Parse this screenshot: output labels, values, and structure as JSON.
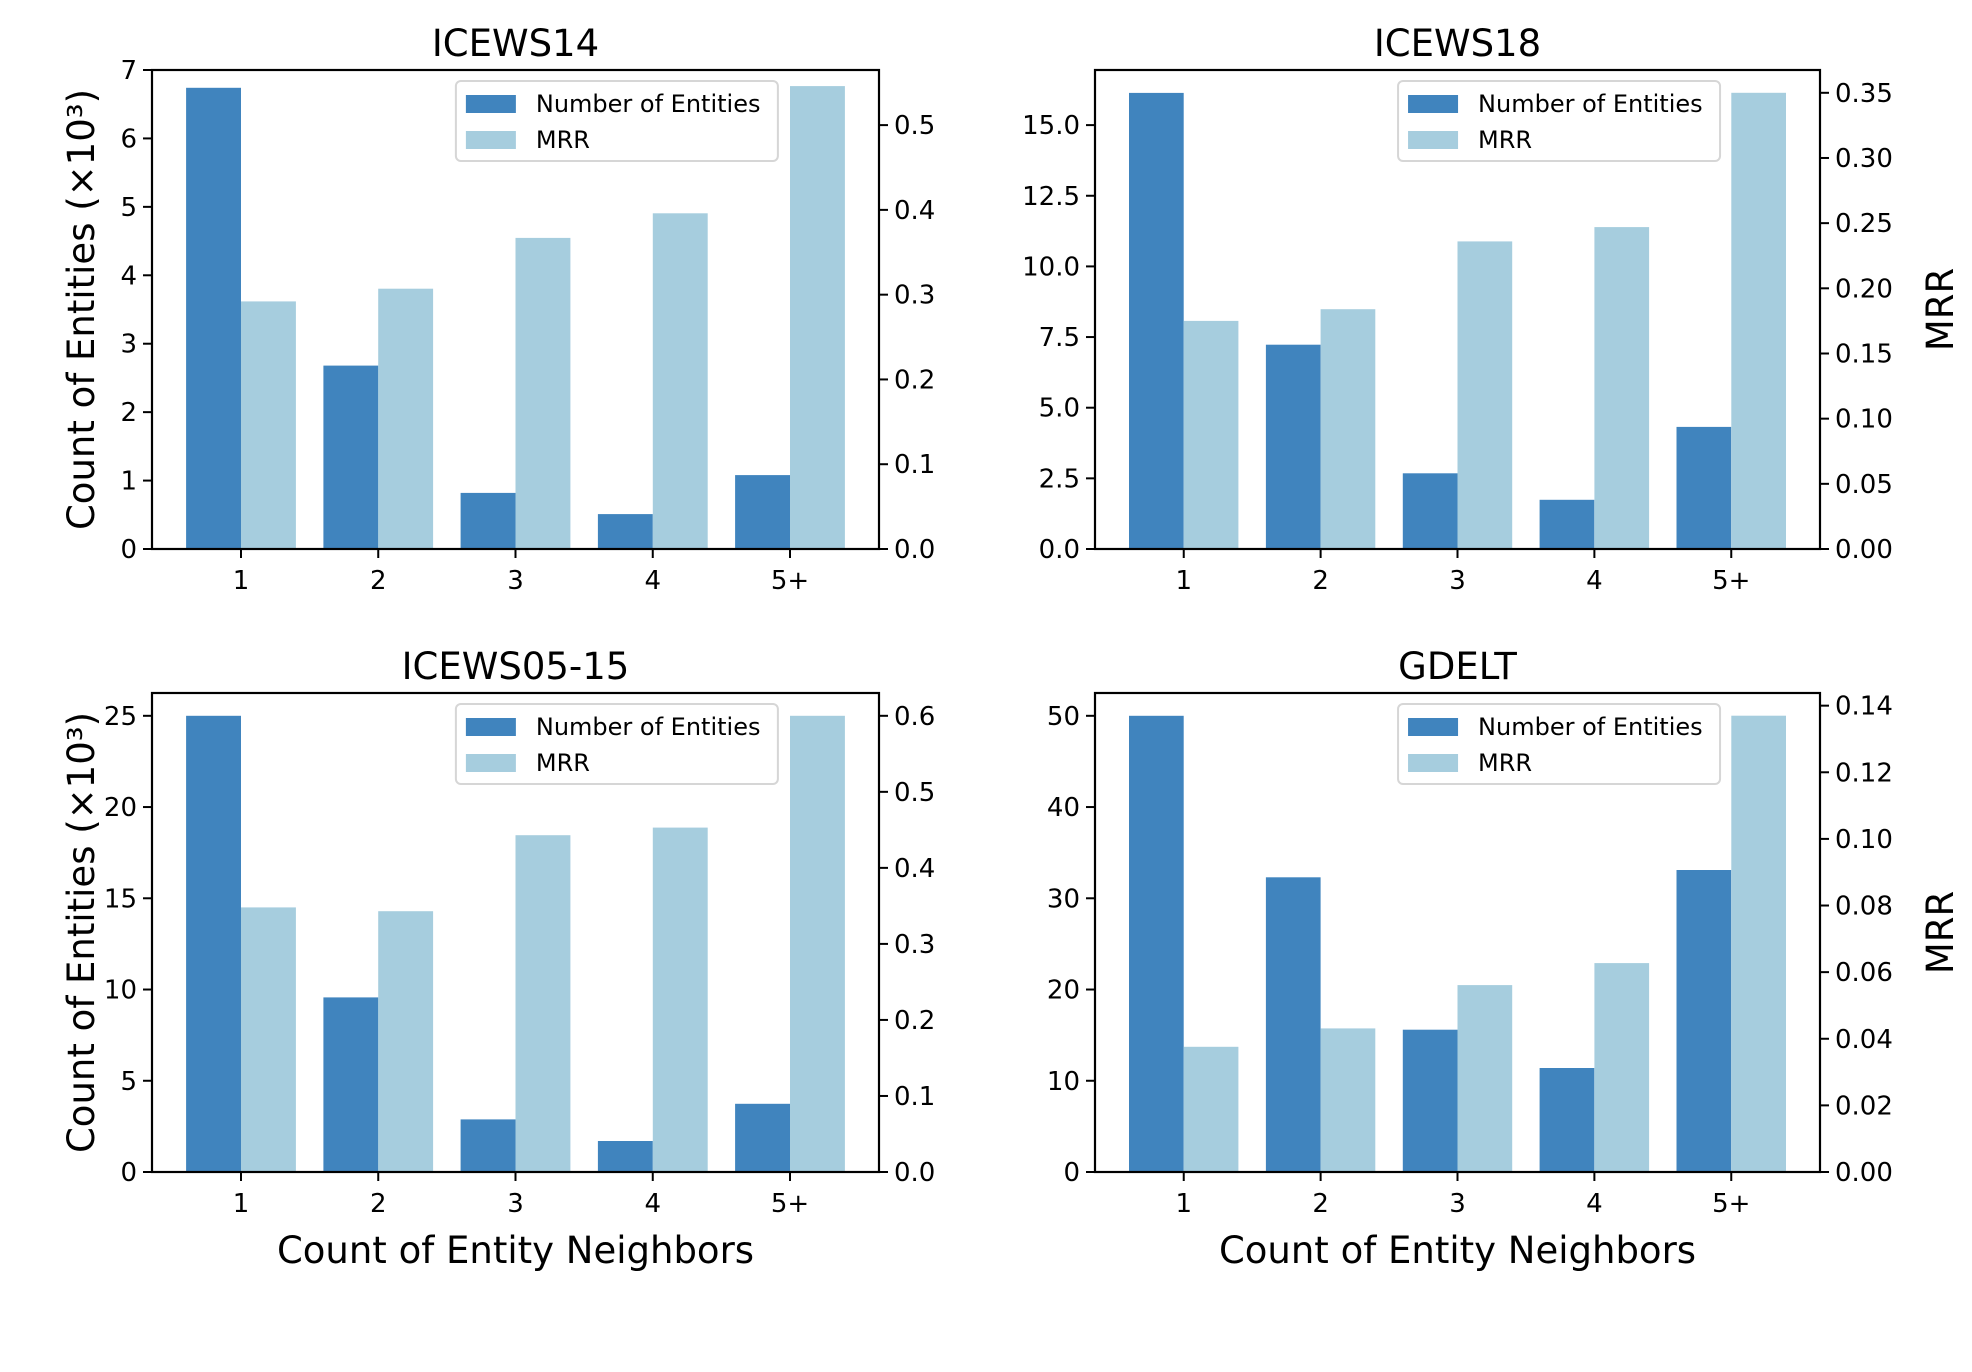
{
  "chart_data": [
    {
      "type": "bar",
      "title": "ICEWS14",
      "categories": [
        "1",
        "2",
        "3",
        "4",
        "5+"
      ],
      "xlabel": "",
      "ylabel": "Count of Entities (×10³)",
      "y2label": "",
      "ylim": [
        0,
        7
      ],
      "y2lim": [
        0,
        0.565
      ],
      "yticks": [
        "0",
        "1",
        "2",
        "3",
        "4",
        "5",
        "6",
        "7"
      ],
      "ytick_values": [
        0,
        1,
        2,
        3,
        4,
        5,
        6,
        7
      ],
      "y2ticks": [
        "0.0",
        "0.1",
        "0.2",
        "0.3",
        "0.4",
        "0.5"
      ],
      "y2tick_values": [
        0,
        0.1,
        0.2,
        0.3,
        0.4,
        0.5
      ],
      "series": [
        {
          "name": "Number of Entities",
          "axis": "left",
          "color": "#4084BE",
          "values": [
            6.74,
            2.68,
            0.82,
            0.51,
            1.08
          ]
        },
        {
          "name": "MRR",
          "axis": "right",
          "color": "#A6CDDE",
          "values": [
            0.292,
            0.307,
            0.367,
            0.396,
            0.546
          ]
        }
      ],
      "legend": "top-right",
      "grid": false
    },
    {
      "type": "bar",
      "title": "ICEWS18",
      "categories": [
        "1",
        "2",
        "3",
        "4",
        "5+"
      ],
      "xlabel": "",
      "ylabel": "",
      "y2label": "MRR",
      "ylim": [
        0,
        16.95
      ],
      "y2lim": [
        0,
        0.3675
      ],
      "yticks": [
        "0.0",
        "2.5",
        "5.0",
        "7.5",
        "10.0",
        "12.5",
        "15.0"
      ],
      "ytick_values": [
        0,
        2.5,
        5,
        7.5,
        10,
        12.5,
        15
      ],
      "y2ticks": [
        "0.00",
        "0.05",
        "0.10",
        "0.15",
        "0.20",
        "0.25",
        "0.30",
        "0.35"
      ],
      "y2tick_values": [
        0,
        0.05,
        0.1,
        0.15,
        0.2,
        0.25,
        0.3,
        0.35
      ],
      "series": [
        {
          "name": "Number of Entities",
          "axis": "left",
          "color": "#4084BE",
          "values": [
            16.14,
            7.23,
            2.68,
            1.74,
            4.32
          ]
        },
        {
          "name": "MRR",
          "axis": "right",
          "color": "#A6CDDE",
          "values": [
            0.175,
            0.184,
            0.236,
            0.247,
            0.35
          ]
        }
      ],
      "legend": "top-right",
      "grid": false
    },
    {
      "type": "bar",
      "title": "ICEWS05-15",
      "categories": [
        "1",
        "2",
        "3",
        "4",
        "5+"
      ],
      "xlabel": "Count of Entity Neighbors",
      "ylabel": "Count of Entities (×10³)",
      "y2label": "",
      "ylim": [
        0,
        26.25
      ],
      "y2lim": [
        0,
        0.63
      ],
      "yticks": [
        "0",
        "5",
        "10",
        "15",
        "20",
        "25"
      ],
      "ytick_values": [
        0,
        5,
        10,
        15,
        20,
        25
      ],
      "y2ticks": [
        "0.0",
        "0.1",
        "0.2",
        "0.3",
        "0.4",
        "0.5",
        "0.6"
      ],
      "y2tick_values": [
        0,
        0.1,
        0.2,
        0.3,
        0.4,
        0.5,
        0.6
      ],
      "series": [
        {
          "name": "Number of Entities",
          "axis": "left",
          "color": "#4084BE",
          "values": [
            25.0,
            9.57,
            2.88,
            1.7,
            3.74
          ]
        },
        {
          "name": "MRR",
          "axis": "right",
          "color": "#A6CDDE",
          "values": [
            0.348,
            0.343,
            0.443,
            0.453,
            0.6
          ]
        }
      ],
      "legend": "top-right",
      "grid": false
    },
    {
      "type": "bar",
      "title": "GDELT",
      "categories": [
        "1",
        "2",
        "3",
        "4",
        "5+"
      ],
      "xlabel": "Count of Entity Neighbors",
      "ylabel": "",
      "y2label": "MRR",
      "ylim": [
        0,
        52.5
      ],
      "y2lim": [
        0,
        0.1438
      ],
      "yticks": [
        "0",
        "10",
        "20",
        "30",
        "40",
        "50"
      ],
      "ytick_values": [
        0,
        10,
        20,
        30,
        40,
        50
      ],
      "y2ticks": [
        "0.00",
        "0.02",
        "0.04",
        "0.06",
        "0.08",
        "0.10",
        "0.12",
        "0.14"
      ],
      "y2tick_values": [
        0,
        0.02,
        0.04,
        0.06,
        0.08,
        0.1,
        0.12,
        0.14
      ],
      "series": [
        {
          "name": "Number of Entities",
          "axis": "left",
          "color": "#4084BE",
          "values": [
            50.0,
            32.3,
            15.6,
            11.4,
            33.1
          ]
        },
        {
          "name": "MRR",
          "axis": "right",
          "color": "#A6CDDE",
          "values": [
            0.0376,
            0.0431,
            0.0561,
            0.0627,
            0.137
          ]
        }
      ],
      "legend": "top-right",
      "grid": false
    }
  ]
}
